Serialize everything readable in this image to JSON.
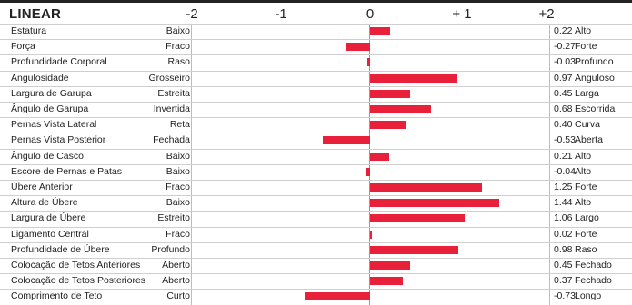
{
  "header": {
    "title": "LINEAR",
    "ticks": [
      "-2",
      "-1",
      "0",
      "+ 1",
      "+2"
    ]
  },
  "chart_data": {
    "type": "bar",
    "orientation": "horizontal",
    "title": "LINEAR",
    "xlim": [
      -2,
      2
    ],
    "x_ticks": [
      "-2",
      "-1",
      "0",
      "+ 1",
      "+2"
    ],
    "rows": [
      {
        "trait": "Estatura",
        "low": "Baixo",
        "value": 0.22,
        "value_label": "0.22",
        "high": "Alto"
      },
      {
        "trait": "Força",
        "low": "Fraco",
        "value": -0.27,
        "value_label": "-0.27",
        "high": "Forte"
      },
      {
        "trait": "Profundidade Corporal",
        "low": "Raso",
        "value": -0.03,
        "value_label": "-0.03",
        "high": "Profundo"
      },
      {
        "trait": "Angulosidade",
        "low": "Grosseiro",
        "value": 0.97,
        "value_label": "0.97",
        "high": "Anguloso"
      },
      {
        "trait": "Largura de Garupa",
        "low": "Estreita",
        "value": 0.45,
        "value_label": "0.45",
        "high": "Larga"
      },
      {
        "trait": "Ângulo de Garupa",
        "low": "Invertida",
        "value": 0.68,
        "value_label": "0.68",
        "high": "Escorrida"
      },
      {
        "trait": "Pernas Vista Lateral",
        "low": "Reta",
        "value": 0.4,
        "value_label": "0.40",
        "high": "Curva"
      },
      {
        "trait": "Pernas Vista Posterior",
        "low": "Fechada",
        "value": -0.53,
        "value_label": "-0.53",
        "high": "Aberta"
      },
      {
        "trait": "Ângulo de Casco",
        "low": "Baixo",
        "value": 0.21,
        "value_label": "0.21",
        "high": "Alto"
      },
      {
        "trait": "Escore de Pernas e Patas",
        "low": "Baixo",
        "value": -0.04,
        "value_label": "-0.04",
        "high": "Alto"
      },
      {
        "trait": "Úbere Anterior",
        "low": "Fraco",
        "value": 1.25,
        "value_label": "1.25",
        "high": "Forte"
      },
      {
        "trait": "Altura de Úbere",
        "low": "Baixo",
        "value": 1.44,
        "value_label": "1.44",
        "high": "Alto"
      },
      {
        "trait": "Largura de Úbere",
        "low": "Estreito",
        "value": 1.06,
        "value_label": "1.06",
        "high": "Largo"
      },
      {
        "trait": "Ligamento Central",
        "low": "Fraco",
        "value": 0.02,
        "value_label": "0.02",
        "high": "Forte"
      },
      {
        "trait": "Profundidade de Úbere",
        "low": "Profundo",
        "value": 0.98,
        "value_label": "0.98",
        "high": "Raso"
      },
      {
        "trait": "Colocação de Tetos Anteriores",
        "low": "Aberto",
        "value": 0.45,
        "value_label": "0.45",
        "high": "Fechado"
      },
      {
        "trait": "Colocação de Tetos Posteriores",
        "low": "Aberto",
        "value": 0.37,
        "value_label": "0.37",
        "high": "Fechado"
      },
      {
        "trait": "Comprimento de Teto",
        "low": "Curto",
        "value": -0.73,
        "value_label": "-0.73",
        "high": "Longo"
      }
    ],
    "bar_color": "#e8203a",
    "grid": true
  }
}
